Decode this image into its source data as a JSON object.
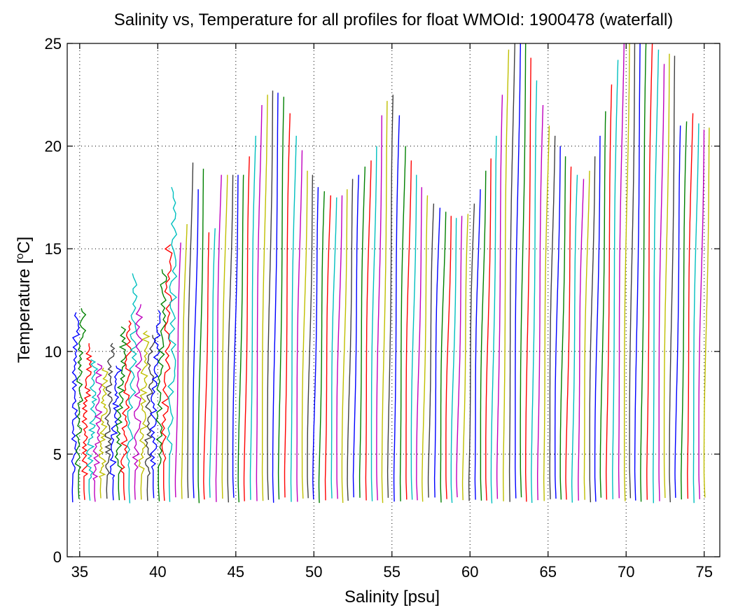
{
  "chart_data": {
    "type": "line",
    "title": "Salinity vs, Temperature for all profiles for float WMOId: 1900478 (waterfall)",
    "xlabel": "Salinity [psu]",
    "ylabel_main": "Temperature [",
    "ylabel_sup": "o",
    "ylabel_end": "C]",
    "xlim": [
      34.2,
      76.0
    ],
    "ylim": [
      0,
      25
    ],
    "xticks": [
      35,
      40,
      45,
      50,
      55,
      60,
      65,
      70,
      75
    ],
    "yticks": [
      0,
      5,
      10,
      15,
      20,
      25
    ],
    "grid": true,
    "waterfall_offset_psu": 0.5,
    "profile_start_salinity": 34.5,
    "profile_end_salinity": 75.0,
    "colors": [
      "#0000ff",
      "#008000",
      "#ff0000",
      "#00bfbf",
      "#bf00bf",
      "#bfbf00",
      "#404040"
    ],
    "profile_top_temperatures": [
      11.9,
      12.1,
      10.4,
      9.6,
      9.4,
      9.2,
      10.4,
      9.3,
      11.2,
      11.5,
      13.8,
      12.3,
      11.0,
      10.8,
      12.0,
      14.0,
      15.2,
      18.0,
      15.3,
      16.2,
      19.2,
      17.9,
      18.9,
      15.8,
      16.0,
      18.6,
      18.6,
      18.6,
      18.6,
      18.6,
      19.5,
      20.5,
      22.0,
      22.5,
      22.7,
      22.6,
      22.4,
      21.6,
      20.5,
      19.8,
      18.8,
      18.6,
      18.0,
      17.8,
      17.6,
      17.5,
      17.6,
      17.9,
      18.4,
      18.6,
      19.0,
      19.3,
      20.0,
      21.5,
      22.2,
      22.5,
      21.5,
      20.0,
      19.3,
      18.6,
      18.0,
      17.6,
      17.2,
      17.0,
      16.8,
      16.6,
      16.5,
      16.6,
      16.7,
      17.2,
      17.9,
      18.8,
      19.4,
      20.5,
      22.5,
      24.7,
      25.0,
      25.0,
      25.0,
      24.3,
      23.2,
      22.0,
      21.0,
      20.5,
      20.0,
      19.5,
      19.0,
      18.6,
      18.4,
      18.8,
      19.5,
      20.5,
      21.7,
      23.0,
      24.2,
      25.0,
      25.0,
      25.0,
      25.0,
      25.0,
      25.0,
      24.7,
      24.0,
      24.5,
      24.4,
      21.0,
      21.2,
      21.6,
      21.1,
      20.8,
      20.9
    ],
    "profile_bottom_temperatures_note": "",
    "deep_temperature_approx": 2.7
  }
}
